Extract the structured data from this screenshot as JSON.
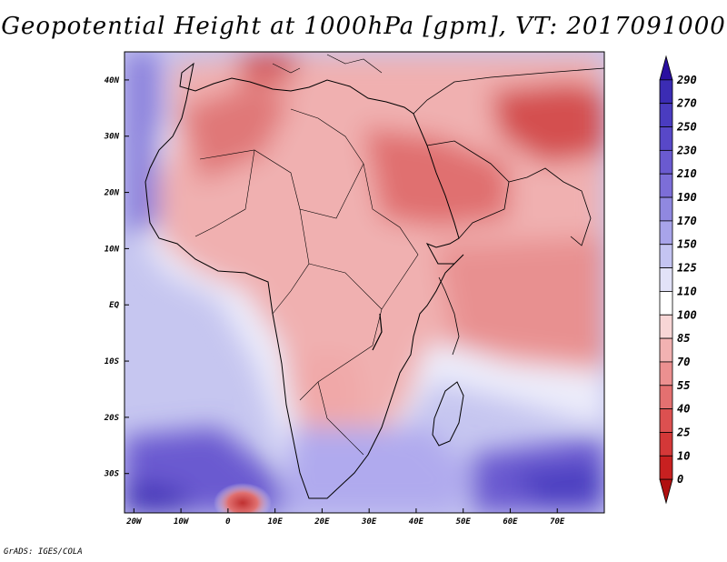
{
  "title": "Geopotential Height at 1000hPa [gpm], VT: 2017091000",
  "credit": "GrADS: IGES/COLA",
  "map": {
    "lon_range": [
      -22,
      80
    ],
    "lat_range": [
      -37,
      45
    ],
    "lon_ticks": [
      {
        "value": -20,
        "label": "20W"
      },
      {
        "value": -10,
        "label": "10W"
      },
      {
        "value": 0,
        "label": "0"
      },
      {
        "value": 10,
        "label": "10E"
      },
      {
        "value": 20,
        "label": "20E"
      },
      {
        "value": 30,
        "label": "30E"
      },
      {
        "value": 40,
        "label": "40E"
      },
      {
        "value": 50,
        "label": "50E"
      },
      {
        "value": 60,
        "label": "60E"
      },
      {
        "value": 70,
        "label": "70E"
      }
    ],
    "lat_ticks": [
      {
        "value": 40,
        "label": "40N"
      },
      {
        "value": 30,
        "label": "30N"
      },
      {
        "value": 20,
        "label": "20N"
      },
      {
        "value": 10,
        "label": "10N"
      },
      {
        "value": 0,
        "label": "EQ"
      },
      {
        "value": -10,
        "label": "10S"
      },
      {
        "value": -20,
        "label": "20S"
      },
      {
        "value": -30,
        "label": "30S"
      }
    ]
  },
  "colorbar": {
    "labels": [
      "290",
      "270",
      "250",
      "230",
      "210",
      "190",
      "170",
      "150",
      "125",
      "110",
      "100",
      "85",
      "70",
      "55",
      "40",
      "25",
      "10",
      "0"
    ],
    "colors": [
      "#2a0fa0",
      "#3b2cb4",
      "#4a3cc0",
      "#5848c8",
      "#6a5ad0",
      "#7c6ed8",
      "#9088e0",
      "#a8a4ea",
      "#c4c4f2",
      "#e2e2f8",
      "#ffffff",
      "#f8d6d6",
      "#f2b2b2",
      "#ec9090",
      "#e47070",
      "#dc5050",
      "#d43838",
      "#c82020",
      "#b01010"
    ]
  }
}
